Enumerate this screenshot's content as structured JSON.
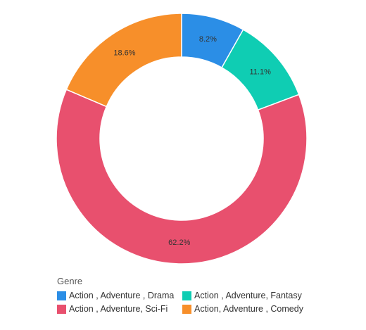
{
  "chart_data": {
    "type": "pie",
    "donut": true,
    "categories": [
      "Action , Adventure , Drama",
      "Action , Adventure, Fantasy",
      "Action , Adventure, Sci-Fi",
      "Action, Adventure , Comedy"
    ],
    "values": [
      8.2,
      11.1,
      62.2,
      18.6
    ],
    "labels": [
      "8.2%",
      "11.1%",
      "62.2%",
      "18.6%"
    ],
    "colors": [
      "#2b8ee6",
      "#0fcdb3",
      "#e8506e",
      "#f78f2a"
    ],
    "legend_title": "Genre",
    "legend_position": "bottom-left"
  }
}
